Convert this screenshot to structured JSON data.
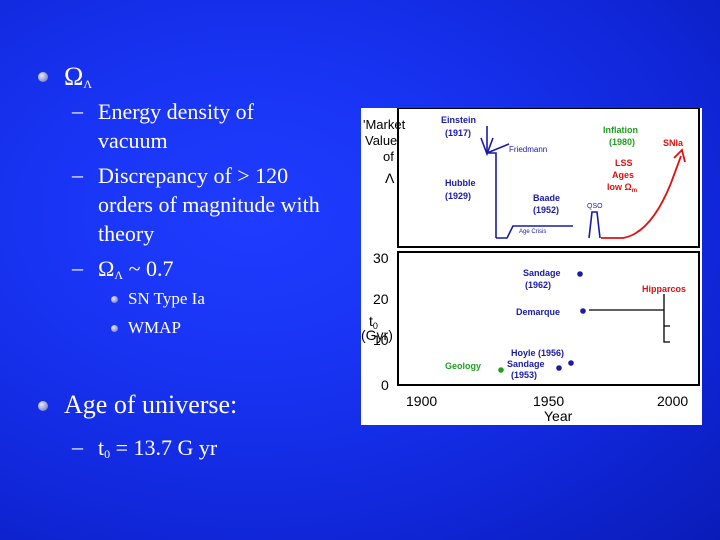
{
  "slide": {
    "item1": {
      "omega": "Ω",
      "lambda": "Λ"
    },
    "sub1": {
      "line1": "Energy density of",
      "line2": "vacuum"
    },
    "sub2": {
      "line1": "Discrepancy of > 120",
      "line2": "orders of magnitude with",
      "line3": "theory"
    },
    "sub3": {
      "omega": "Ω",
      "lambda": "Λ",
      "rest": "~ 0.7"
    },
    "level3": [
      "SN Type Ia",
      "WMAP"
    ],
    "item2": "Age of universe:",
    "sub4": {
      "t": "t",
      "sub": "0",
      "rest": " = 13.7 G yr"
    },
    "dash": "–"
  },
  "figure": {
    "top_panel": {
      "ylabel_lines": [
        "'Market",
        "Value'",
        "of",
        "Λ"
      ],
      "annotations": {
        "einstein": "Einstein",
        "einstein_year": "(1917)",
        "friedmann": "Friedmann",
        "hubble": "Hubble",
        "hubble_year": "(1929)",
        "baade": "Baade",
        "baade_year": "(1952)",
        "age_crisis": "Age Crisis",
        "qso": "QSO",
        "inflation": "Inflation",
        "inflation_year": "(1980)",
        "lss": "LSS",
        "ages": "Ages",
        "low_omega": "low Ω",
        "omega_sub": "m",
        "snia": "SNIa"
      },
      "colors": {
        "blue": "#1a1aa8",
        "red": "#e01010",
        "green": "#20a020",
        "black": "#000000"
      }
    },
    "bottom_panel": {
      "ylabel_t": "t",
      "ylabel_sub": "0",
      "ylabel_unit": "(Gyr)",
      "xlabel": "Year",
      "xticks": [
        "1900",
        "1950",
        "2000"
      ],
      "yticks": [
        "30",
        "20",
        "10",
        "0"
      ],
      "annotations": {
        "sandage1962": "Sandage",
        "sandage1962_year": "(1962)",
        "demarque": "Demarque",
        "hipparcos": "Hipparcos",
        "hoyle": "Hoyle (1956)",
        "sandage1953": "Sandage",
        "sandage1953_year": "(1953)",
        "geology": "Geology"
      }
    }
  }
}
